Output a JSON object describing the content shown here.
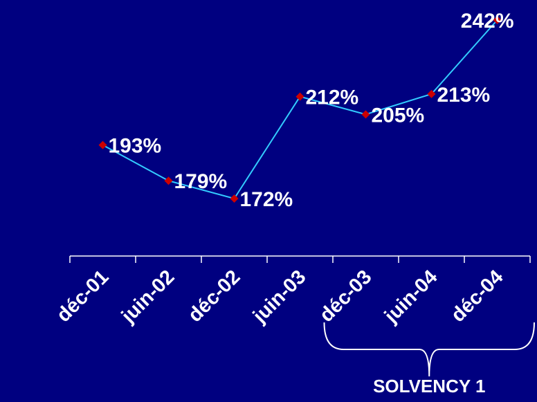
{
  "chart_data": {
    "type": "line",
    "categories": [
      "déc-01",
      "juin-02",
      "déc-02",
      "juin-03",
      "déc-03",
      "juin-04",
      "déc-04"
    ],
    "values": [
      193,
      179,
      172,
      212,
      205,
      213,
      242
    ],
    "data_labels": [
      "193%",
      "179%",
      "172%",
      "212%",
      "205%",
      "213%",
      "242%"
    ],
    "line_color": "#33CCFF",
    "marker_color": "#CC0000",
    "marker": "diamond",
    "grid": false,
    "y_axis_visible": false,
    "bracket": {
      "label": "SOLVENCY 1",
      "from_category": "déc-03",
      "to_category": "déc-04"
    }
  },
  "colors": {
    "background": "#000080",
    "text": "#FFFFFF",
    "axis": "#FFFFFF"
  }
}
